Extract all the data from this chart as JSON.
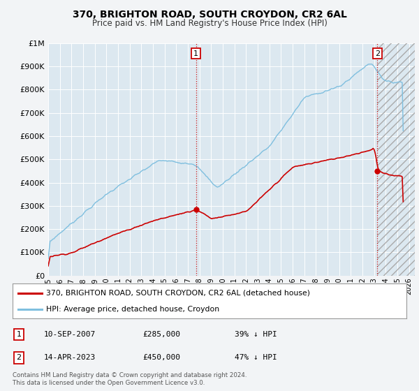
{
  "title": "370, BRIGHTON ROAD, SOUTH CROYDON, CR2 6AL",
  "subtitle": "Price paid vs. HM Land Registry's House Price Index (HPI)",
  "bg_color": "#f2f4f6",
  "plot_bg_color": "#dce8f0",
  "grid_color": "#ffffff",
  "hpi_color": "#7fbfdf",
  "price_color": "#cc0000",
  "ylim": [
    0,
    1000000
  ],
  "xlim_start": 1995.0,
  "xlim_end": 2026.5,
  "sale1_x": 2007.7,
  "sale1_y": 285000,
  "sale2_x": 2023.28,
  "sale2_y": 450000,
  "legend_line1": "370, BRIGHTON ROAD, SOUTH CROYDON, CR2 6AL (detached house)",
  "legend_line2": "HPI: Average price, detached house, Croydon",
  "table_row1": [
    "1",
    "10-SEP-2007",
    "£285,000",
    "39% ↓ HPI"
  ],
  "table_row2": [
    "2",
    "14-APR-2023",
    "£450,000",
    "47% ↓ HPI"
  ],
  "footnote": "Contains HM Land Registry data © Crown copyright and database right 2024.\nThis data is licensed under the Open Government Licence v3.0.",
  "ytick_labels": [
    "£0",
    "£100K",
    "£200K",
    "£300K",
    "£400K",
    "£500K",
    "£600K",
    "£700K",
    "£800K",
    "£900K",
    "£1M"
  ],
  "ytick_values": [
    0,
    100000,
    200000,
    300000,
    400000,
    500000,
    600000,
    700000,
    800000,
    900000,
    1000000
  ]
}
